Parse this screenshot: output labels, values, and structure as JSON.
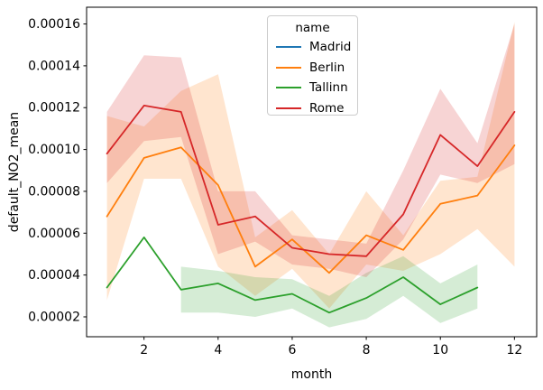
{
  "figure": {
    "background": "#ffffff",
    "xlabel": "month",
    "ylabel": "default_NO2_mean",
    "legend": {
      "title": "name",
      "entries": [
        {
          "label": "Madrid",
          "color": "#1f77b4"
        },
        {
          "label": "Berlin",
          "color": "#ff7f0e"
        },
        {
          "label": "Tallinn",
          "color": "#2ca02c"
        },
        {
          "label": "Rome",
          "color": "#d62728"
        }
      ]
    }
  },
  "chart_data": {
    "type": "line",
    "title": "",
    "xlabel": "month",
    "ylabel": "default_NO2_mean",
    "grid": false,
    "legend_title": "name",
    "legend_position": "upper center",
    "band_style": "translucent confidence interval around each line, alpha 0.2",
    "xlim": [
      0.45,
      12.6
    ],
    "ylim": [
      1.05e-05,
      0.000168
    ],
    "x_ticks": [
      2,
      4,
      6,
      8,
      10,
      12
    ],
    "y_ticks": [
      2e-05,
      4e-05,
      6e-05,
      8e-05,
      0.0001,
      0.00012,
      0.00014,
      0.00016
    ],
    "y_tick_decimals": 5,
    "series": [
      {
        "name": "Madrid",
        "color": "#1f77b4",
        "x": [],
        "values": [],
        "note": "present in legend only; no visible line in plot"
      },
      {
        "name": "Berlin",
        "color": "#ff7f0e",
        "x": [
          1,
          2,
          3,
          4,
          5,
          6,
          7,
          8,
          9,
          10,
          11,
          12
        ],
        "values": [
          6.8e-05,
          9.6e-05,
          0.000101,
          8.3e-05,
          4.4e-05,
          5.7e-05,
          4.1e-05,
          5.9e-05,
          5.2e-05,
          7.4e-05,
          7.8e-05,
          0.000102
        ],
        "ci_lower": [
          2.8e-05,
          8.6e-05,
          8.6e-05,
          4.4e-05,
          3e-05,
          4.3e-05,
          2.4e-05,
          4.5e-05,
          4.2e-05,
          5e-05,
          6.2e-05,
          4.4e-05
        ],
        "ci_upper": [
          0.000116,
          0.000111,
          0.000128,
          0.000136,
          5.8e-05,
          7.1e-05,
          5e-05,
          8e-05,
          5.9e-05,
          8.5e-05,
          8.7e-05,
          0.000161
        ]
      },
      {
        "name": "Tallinn",
        "color": "#2ca02c",
        "x": [
          1,
          2,
          3,
          4,
          5,
          6,
          7,
          8,
          9,
          10,
          11
        ],
        "values": [
          3.4e-05,
          5.8e-05,
          3.3e-05,
          3.6e-05,
          2.8e-05,
          3.1e-05,
          2.2e-05,
          2.9e-05,
          3.9e-05,
          2.6e-05,
          3.4e-05
        ],
        "ci_lower": [
          null,
          null,
          2.2e-05,
          2.2e-05,
          2e-05,
          2.4e-05,
          1.5e-05,
          1.9e-05,
          3e-05,
          1.7e-05,
          2.4e-05
        ],
        "ci_upper": [
          null,
          null,
          4.4e-05,
          4.2e-05,
          3.9e-05,
          3.8e-05,
          3e-05,
          4.1e-05,
          4.9e-05,
          3.6e-05,
          4.5e-05
        ]
      },
      {
        "name": "Rome",
        "color": "#d62728",
        "x": [
          1,
          2,
          3,
          4,
          5,
          6,
          7,
          8,
          9,
          10,
          11,
          12
        ],
        "values": [
          9.8e-05,
          0.000121,
          0.000118,
          6.4e-05,
          6.8e-05,
          5.3e-05,
          5e-05,
          4.9e-05,
          6.9e-05,
          0.000107,
          9.2e-05,
          0.000118
        ],
        "ci_lower": [
          8.4e-05,
          0.000104,
          0.000106,
          5e-05,
          5.6e-05,
          4.5e-05,
          4.3e-05,
          3.9e-05,
          5.7e-05,
          8.8e-05,
          8.4e-05,
          9.3e-05
        ],
        "ci_upper": [
          0.000118,
          0.000145,
          0.000144,
          8e-05,
          8e-05,
          5.9e-05,
          5.7e-05,
          5.5e-05,
          9e-05,
          0.000129,
          0.000103,
          0.00016
        ]
      }
    ]
  }
}
